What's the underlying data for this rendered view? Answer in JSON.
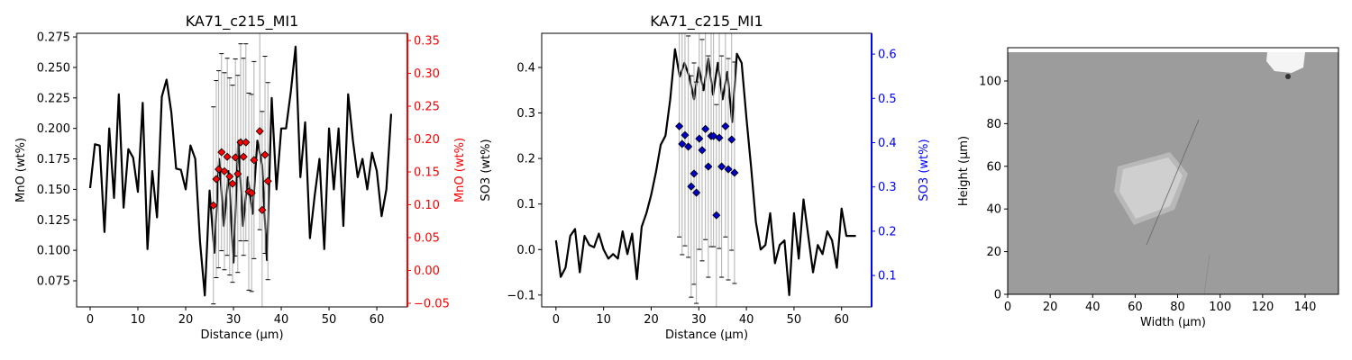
{
  "chart_data": [
    {
      "type": "line",
      "title": "KA71_c215_MI1",
      "xlabel": "Distance (µm)",
      "ylabel": "MnO (wt%)",
      "y2label": "MnO (wt%)",
      "y2color": "#ff0000",
      "xlim": [
        -2.83,
        66.4
      ],
      "xticks": [
        0,
        10,
        20,
        30,
        40,
        50,
        60
      ],
      "ylim": [
        0.0536,
        0.278
      ],
      "yticks": [
        0.075,
        {
          "value": 0.1,
          "label": "0.100"
        },
        0.125,
        {
          "value": 0.15,
          "label": "0.150"
        },
        0.175,
        {
          "value": 0.2,
          "label": "0.200"
        },
        0.225,
        {
          "value": 0.25,
          "label": "0.250"
        },
        0.275
      ],
      "y2lim": [
        -0.0555,
        0.361
      ],
      "y2ticks": [
        {
          "value": -0.05,
          "label": "−0.05"
        },
        {
          "value": 0,
          "label": "0.00"
        },
        0.05,
        {
          "value": 0.1,
          "label": "0.10"
        },
        0.15,
        {
          "value": 0.2,
          "label": "0.20"
        },
        0.25,
        {
          "value": 0.3,
          "label": "0.30"
        },
        0.35
      ],
      "series": [
        {
          "color": "#000000",
          "x": [
            0,
            1,
            2,
            3,
            4,
            5,
            6,
            7,
            8,
            9,
            10,
            11,
            12,
            13,
            14,
            15,
            16,
            17,
            18,
            19,
            20,
            21,
            22,
            23,
            24,
            25,
            26,
            27,
            28,
            29,
            30,
            31,
            32,
            33,
            34,
            35,
            36,
            37,
            38,
            39,
            40,
            41,
            42,
            43,
            44,
            45,
            46,
            47,
            48,
            49,
            50,
            51,
            52,
            53,
            54,
            55,
            56,
            57,
            58,
            59,
            60,
            61,
            62,
            63
          ],
          "values": [
            0.151,
            0.187,
            0.186,
            0.115,
            0.2,
            0.143,
            0.228,
            0.135,
            0.183,
            0.176,
            0.148,
            0.221,
            0.101,
            0.165,
            0.127,
            0.226,
            0.24,
            0.213,
            0.167,
            0.166,
            0.15,
            0.186,
            0.175,
            0.107,
            0.063,
            0.149,
            0.098,
            0.175,
            0.12,
            0.165,
            0.09,
            0.19,
            0.12,
            0.16,
            0.13,
            0.19,
            0.17,
            0.092,
            0.225,
            0.15,
            0.2,
            0.2,
            0.23,
            0.267,
            0.16,
            0.205,
            0.11,
            0.145,
            0.175,
            0.101,
            0.2,
            0.15,
            0.2,
            0.12,
            0.228,
            0.19,
            0.16,
            0.175,
            0.15,
            0.18,
            0.165,
            0.128,
            0.15,
            0.212
          ]
        },
        {
          "axis": "y2",
          "color": "#ff0000",
          "marker": "diamond",
          "x": [
            25.8,
            26.4,
            26.9,
            27.5,
            28.1,
            28.7,
            29.2,
            29.8,
            30.4,
            30.9,
            31.5,
            32.1,
            32.6,
            33.2,
            33.8,
            34.3,
            35.5,
            36.0,
            36.6,
            37.2
          ],
          "values": [
            0.099,
            0.139,
            0.154,
            0.18,
            0.151,
            0.173,
            0.143,
            0.132,
            0.172,
            0.147,
            0.195,
            0.173,
            0.195,
            0.12,
            0.118,
            0.168,
            0.212,
            0.092,
            0.176,
            0.136
          ],
          "errors": [
            0.15,
            0.15,
            0.15,
            0.15,
            0.15,
            0.15,
            0.15,
            0.15,
            0.15,
            0.15,
            0.15,
            0.15,
            0.15,
            0.15,
            0.15,
            0.15,
            0.15,
            0.15,
            0.15,
            0.15
          ]
        }
      ]
    },
    {
      "type": "line",
      "title": "KA71_c215_MI1",
      "xlabel": "Distance (µm)",
      "ylabel": "SO3 (wt%)",
      "y2label": "SO3 (wt%)",
      "y2color": "#0000ff",
      "xlim": [
        -3.0,
        66.3
      ],
      "xticks": [
        0,
        10,
        20,
        30,
        40,
        50,
        60
      ],
      "ylim": [
        -0.126,
        0.475
      ],
      "yticks": [
        {
          "value": -0.1,
          "label": "−0.1"
        },
        {
          "value": 0,
          "label": "0.0"
        },
        0.1,
        0.2,
        0.3,
        0.4
      ],
      "y2lim": [
        0.029,
        0.647
      ],
      "y2ticks": [
        0.1,
        0.2,
        0.3,
        0.4,
        0.5,
        0.6
      ],
      "series": [
        {
          "color": "#000000",
          "x": [
            0,
            1,
            2,
            3,
            4,
            5,
            6,
            7,
            8,
            9,
            10,
            11,
            12,
            13,
            14,
            15,
            16,
            17,
            18,
            19,
            20,
            21,
            22,
            23,
            24,
            25,
            26,
            27,
            28,
            29,
            30,
            31,
            32,
            33,
            34,
            35,
            36,
            37,
            38,
            39,
            40,
            41,
            42,
            43,
            44,
            45,
            46,
            47,
            48,
            49,
            50,
            51,
            52,
            53,
            54,
            55,
            56,
            57,
            58,
            59,
            60,
            61,
            62,
            63
          ],
          "values": [
            0.02,
            -0.06,
            -0.04,
            0.03,
            0.045,
            -0.05,
            0.03,
            0.01,
            0.005,
            0.035,
            0,
            -0.02,
            -0.01,
            -0.02,
            0.04,
            -0.01,
            0.035,
            -0.065,
            0.05,
            0.08,
            0.12,
            0.17,
            0.23,
            0.25,
            0.33,
            0.44,
            0.38,
            0.41,
            0.38,
            0.33,
            0.4,
            0.35,
            0.42,
            0.34,
            0.41,
            0.33,
            0.39,
            0.28,
            0.43,
            0.41,
            0.29,
            0.18,
            0.06,
            0,
            0.01,
            0.08,
            -0.03,
            0.01,
            0.02,
            -0.1,
            0.08,
            -0.02,
            0.11,
            0.03,
            -0.05,
            0.01,
            -0.01,
            0.04,
            0.02,
            -0.04,
            0.09,
            0.03,
            0.03,
            0.03
          ]
        },
        {
          "axis": "y2",
          "color": "#0000cc",
          "marker": "diamond",
          "x": [
            25.9,
            26.5,
            27.1,
            27.8,
            28.4,
            29.0,
            29.5,
            30.1,
            30.7,
            31.4,
            32.0,
            32.6,
            33.1,
            33.7,
            34.3,
            34.8,
            35.6,
            36.2,
            36.9,
            37.5
          ],
          "values": [
            0.437,
            0.397,
            0.417,
            0.391,
            0.301,
            0.33,
            0.287,
            0.409,
            0.383,
            0.431,
            0.346,
            0.415,
            0.415,
            0.236,
            0.411,
            0.346,
            0.437,
            0.34,
            0.407,
            0.332
          ],
          "errors": [
            0.25,
            0.25,
            0.25,
            0.25,
            0.25,
            0.25,
            0.25,
            0.25,
            0.25,
            0.25,
            0.25,
            0.25,
            0.25,
            0.25,
            0.25,
            0.25,
            0.25,
            0.25,
            0.25,
            0.25
          ]
        }
      ]
    },
    {
      "type": "image",
      "xlabel": "Width (µm)",
      "ylabel": "Height (µm)",
      "xlim": [
        0,
        155.7
      ],
      "xticks": [
        0,
        20,
        40,
        60,
        80,
        100,
        120,
        140
      ],
      "ylim": [
        0,
        115.6
      ],
      "yticks": [
        0,
        20,
        40,
        60,
        80,
        100
      ]
    }
  ]
}
